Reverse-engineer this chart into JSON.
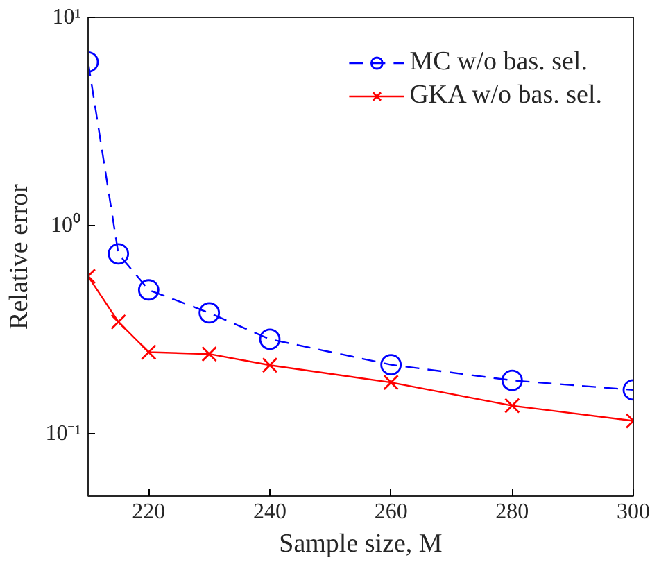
{
  "chart_data": {
    "type": "line",
    "xlabel": "Sample size, M",
    "ylabel": "Relative error",
    "x": [
      210,
      215,
      220,
      230,
      240,
      260,
      280,
      300
    ],
    "series": [
      {
        "name": "MC w/o bas. sel.",
        "color": "#0000ff",
        "marker": "circle",
        "line_style": "dashed",
        "values": [
          6.1,
          0.73,
          0.49,
          0.38,
          0.284,
          0.214,
          0.18,
          0.162
        ]
      },
      {
        "name": "GKA w/o bas. sel.",
        "color": "#ff0000",
        "marker": "cross",
        "line_style": "solid",
        "values": [
          0.57,
          0.344,
          0.246,
          0.241,
          0.213,
          0.176,
          0.136,
          0.115
        ]
      }
    ],
    "log": "y",
    "xlim": [
      210,
      300
    ],
    "ylim": [
      0.05,
      10
    ],
    "xticks": [
      220,
      240,
      260,
      280,
      300
    ],
    "yticks": [
      {
        "value": 0.1,
        "label": "10⁻¹"
      },
      {
        "value": 1,
        "label": "10⁰"
      },
      {
        "value": 10,
        "label": "10¹"
      }
    ],
    "grid": false,
    "legend": "top right"
  }
}
